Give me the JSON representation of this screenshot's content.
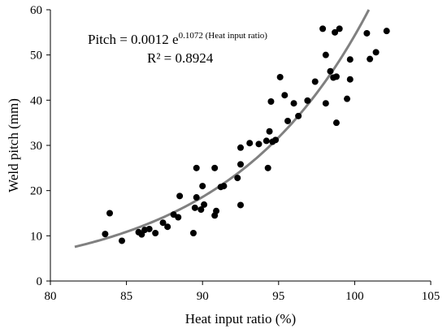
{
  "chart_data": {
    "type": "scatter",
    "xlabel": "Heat input ratio (%)",
    "ylabel": "Weld pitch (mm)",
    "xlim": [
      80,
      105
    ],
    "ylim": [
      0,
      60
    ],
    "xticks": [
      "80",
      "85",
      "90",
      "95",
      "100",
      "105"
    ],
    "yticks": [
      "0",
      "10",
      "20",
      "30",
      "40",
      "50",
      "60"
    ],
    "grid": false,
    "legend": "none",
    "points": [
      [
        83.6,
        10.4
      ],
      [
        83.9,
        15.0
      ],
      [
        84.7,
        8.9
      ],
      [
        85.8,
        10.8
      ],
      [
        86.0,
        10.3
      ],
      [
        86.2,
        11.3
      ],
      [
        86.5,
        11.5
      ],
      [
        86.9,
        10.6
      ],
      [
        87.4,
        12.9
      ],
      [
        87.7,
        12.0
      ],
      [
        88.1,
        14.7
      ],
      [
        88.4,
        14.1
      ],
      [
        88.5,
        18.8
      ],
      [
        89.4,
        10.6
      ],
      [
        89.5,
        16.2
      ],
      [
        89.6,
        25.0
      ],
      [
        89.6,
        18.5
      ],
      [
        89.9,
        15.8
      ],
      [
        90.0,
        21.0
      ],
      [
        90.1,
        16.9
      ],
      [
        90.8,
        25.0
      ],
      [
        90.8,
        14.5
      ],
      [
        90.9,
        15.5
      ],
      [
        91.2,
        20.8
      ],
      [
        91.4,
        21.0
      ],
      [
        92.3,
        22.8
      ],
      [
        92.5,
        29.5
      ],
      [
        92.5,
        25.8
      ],
      [
        92.5,
        16.8
      ],
      [
        93.1,
        30.5
      ],
      [
        93.7,
        30.3
      ],
      [
        94.2,
        31.0
      ],
      [
        94.3,
        25.0
      ],
      [
        94.4,
        33.1
      ],
      [
        94.5,
        39.7
      ],
      [
        94.6,
        30.8
      ],
      [
        94.8,
        31.2
      ],
      [
        95.1,
        45.1
      ],
      [
        95.4,
        41.1
      ],
      [
        95.6,
        35.4
      ],
      [
        96.0,
        39.3
      ],
      [
        96.3,
        36.5
      ],
      [
        96.9,
        39.9
      ],
      [
        97.4,
        44.1
      ],
      [
        97.9,
        55.8
      ],
      [
        98.1,
        50.0
      ],
      [
        98.1,
        39.3
      ],
      [
        98.4,
        46.4
      ],
      [
        98.6,
        45.0
      ],
      [
        98.7,
        55.0
      ],
      [
        98.8,
        35.0
      ],
      [
        98.8,
        45.2
      ],
      [
        99.0,
        55.8
      ],
      [
        99.5,
        40.3
      ],
      [
        99.7,
        44.6
      ],
      [
        99.7,
        49.0
      ],
      [
        100.8,
        54.8
      ],
      [
        101.0,
        49.1
      ],
      [
        101.4,
        50.6
      ],
      [
        102.1,
        55.3
      ]
    ],
    "trendline": {
      "type": "exponential",
      "a": 0.0012,
      "b": 0.1072,
      "x_from": 81.6,
      "color": "#808080"
    },
    "annotation": {
      "equation_main": "Pitch = 0.0012 e",
      "equation_exponent": "0.1072",
      "equation_exponent_variable": " (Heat input ratio)",
      "r_squared": "R² = 0.8924"
    },
    "marker_color": "#000000"
  }
}
